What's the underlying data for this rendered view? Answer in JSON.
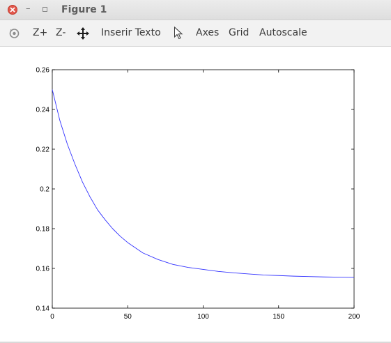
{
  "window": {
    "title": "Figure 1"
  },
  "toolbar": {
    "zoom_in": "Z+",
    "zoom_out": "Z-",
    "insert_text": "Inserir Texto",
    "axes": "Axes",
    "grid": "Grid",
    "autoscale": "Autoscale"
  },
  "icons": {
    "close": "close-icon",
    "minimize": "minimize-icon",
    "maximize": "maximize-icon",
    "rotate": "rotate-icon",
    "pan": "pan-arrows-icon",
    "select": "pointer-icon"
  },
  "colors": {
    "line": "#3333ff",
    "close_button": "#e2574c"
  },
  "chart_data": {
    "type": "line",
    "title": "",
    "xlabel": "",
    "ylabel": "",
    "xlim": [
      0,
      200
    ],
    "ylim": [
      0.14,
      0.26
    ],
    "grid": false,
    "x_ticks": [
      "0",
      "50",
      "100",
      "150",
      "200"
    ],
    "y_ticks": [
      "0.14",
      "0.16",
      "0.18",
      "0.2",
      "0.22",
      "0.24",
      "0.26"
    ],
    "series": [
      {
        "x": [
          0,
          5,
          10,
          15,
          20,
          25,
          30,
          35,
          40,
          45,
          50,
          60,
          70,
          80,
          90,
          100,
          110,
          120,
          130,
          140,
          150,
          160,
          170,
          180,
          190,
          200
        ],
        "y": [
          0.25,
          0.2345,
          0.2225,
          0.2125,
          0.2035,
          0.196,
          0.1895,
          0.1845,
          0.18,
          0.1762,
          0.173,
          0.1678,
          0.1645,
          0.162,
          0.1605,
          0.1595,
          0.1585,
          0.1578,
          0.1572,
          0.1567,
          0.1564,
          0.1561,
          0.1559,
          0.1557,
          0.1556,
          0.1555
        ]
      }
    ]
  }
}
